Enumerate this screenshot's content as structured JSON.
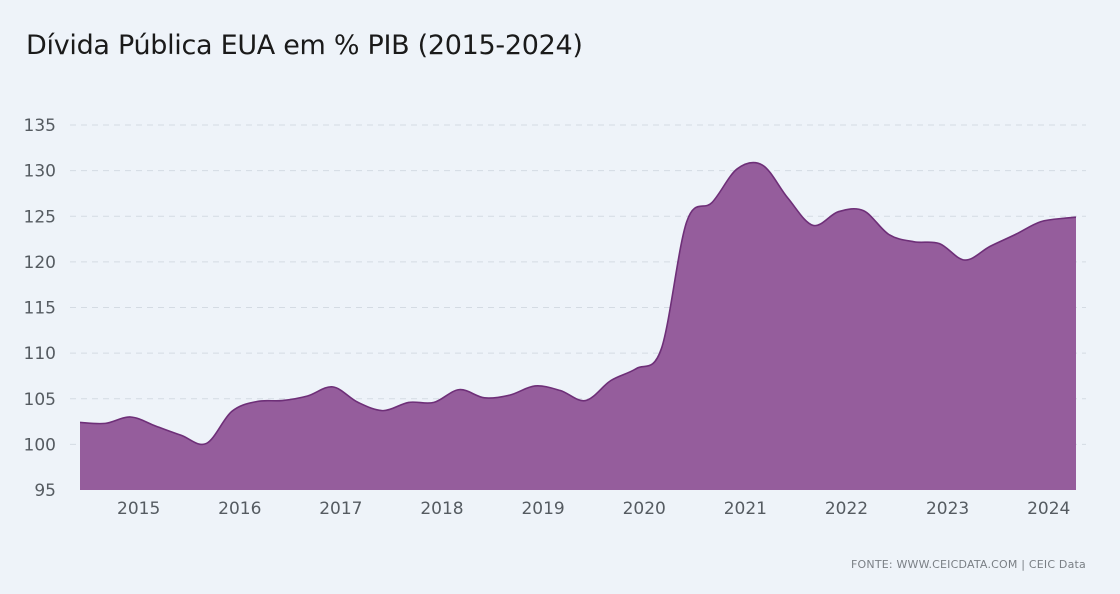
{
  "title": "Dívida Pública EUA em % PIB (2015-2024)",
  "source": "FONTE: WWW.CEICDATA.COM | CEIC Data",
  "colors": {
    "background": "#eef3f9",
    "area_fill": "#955d9c",
    "area_line": "#6e2f78",
    "grid": "#d4dbe3"
  },
  "chart_data": {
    "type": "area",
    "title": "Dívida Pública EUA em % PIB (2015-2024)",
    "xlabel": "",
    "ylabel": "",
    "ylim": [
      95,
      135
    ],
    "yticks": [
      95,
      100,
      105,
      110,
      115,
      120,
      125,
      130,
      135
    ],
    "xticks": [
      2015,
      2016,
      2017,
      2018,
      2019,
      2020,
      2021,
      2022,
      2023,
      2024
    ],
    "xlim": [
      2014.42,
      2024.27
    ],
    "grid": true,
    "legend": "none",
    "series": [
      {
        "x": [
          2014.42,
          2014.67,
          2014.92,
          2015.17,
          2015.42,
          2015.67,
          2015.92,
          2016.17,
          2016.42,
          2016.67,
          2016.92,
          2017.17,
          2017.42,
          2017.67,
          2017.92,
          2018.17,
          2018.42,
          2018.67,
          2018.92,
          2019.17,
          2019.42,
          2019.67,
          2019.92,
          2020.17,
          2020.42,
          2020.67,
          2020.92,
          2021.17,
          2021.42,
          2021.67,
          2021.92,
          2022.17,
          2022.42,
          2022.67,
          2022.92,
          2023.17,
          2023.42,
          2023.67,
          2023.92,
          2024.17,
          2024.27
        ],
        "values": [
          102.4,
          102.3,
          103.0,
          102.0,
          101.0,
          100.1,
          103.6,
          104.7,
          104.8,
          105.3,
          106.3,
          104.6,
          103.7,
          104.6,
          104.6,
          106.0,
          105.1,
          105.4,
          106.4,
          105.9,
          104.8,
          107.0,
          108.3,
          110.5,
          124.4,
          126.5,
          130.2,
          130.6,
          127.0,
          124.0,
          125.5,
          125.6,
          123.0,
          122.2,
          122.0,
          120.2,
          121.7,
          123.0,
          124.4,
          124.8,
          124.9
        ]
      }
    ]
  }
}
